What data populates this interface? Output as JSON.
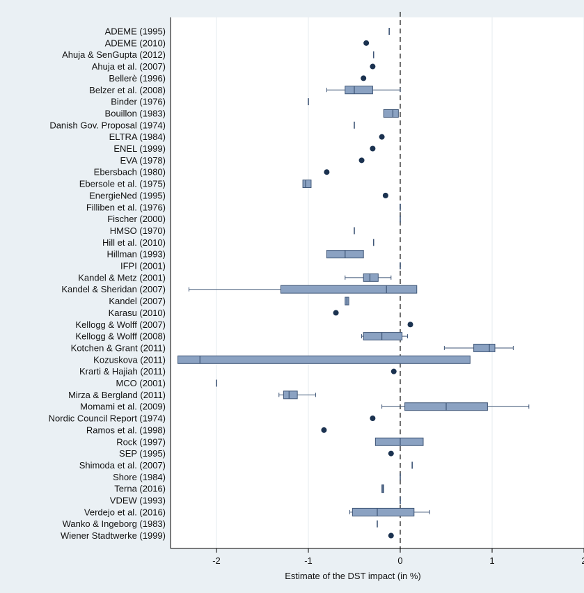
{
  "chart_data": {
    "type": "boxplot",
    "orientation": "horizontal",
    "xlabel": "Estimate of the DST impact (in %)",
    "xlim": [
      -2.5,
      2
    ],
    "xticks": [
      -2,
      -1,
      0,
      1,
      2
    ],
    "reference_line": 0,
    "grid": true,
    "colors": {
      "background": "#eaf0f4",
      "plot_background": "#ffffff",
      "grid": "#e6ebef",
      "box_fill": "#8ba2c2",
      "box_stroke": "#3f5677",
      "whisker": "#3f5677",
      "point": "#1b3250",
      "axis": "#000000",
      "text": "#111111",
      "reference_line": "#333333"
    },
    "studies": [
      {
        "label": "ADEME (1995)",
        "kind": "point_line",
        "v": -0.12
      },
      {
        "label": "ADEME (2010)",
        "kind": "dot",
        "v": -0.37
      },
      {
        "label": "Ahuja & SenGupta (2012)",
        "kind": "point_line",
        "v": -0.29
      },
      {
        "label": "Ahuja et al. (2007)",
        "kind": "dot",
        "v": -0.3
      },
      {
        "label": "Bellerè (1996)",
        "kind": "dot",
        "v": -0.4
      },
      {
        "label": "Belzer et al. (2008)",
        "kind": "box",
        "min": -0.8,
        "q1": -0.6,
        "median": -0.5,
        "q3": -0.3,
        "max": 0.0
      },
      {
        "label": "Binder (1976)",
        "kind": "point_line",
        "v": -1.0
      },
      {
        "label": "Bouillon (1983)",
        "kind": "box",
        "min": -0.18,
        "q1": -0.18,
        "median": -0.08,
        "q3": -0.02,
        "max": -0.02
      },
      {
        "label": "Danish Gov. Proposal (1974)",
        "kind": "point_line",
        "v": -0.5
      },
      {
        "label": "ELTRA (1984)",
        "kind": "dot",
        "v": -0.2
      },
      {
        "label": "ENEL (1999)",
        "kind": "dot",
        "v": -0.3
      },
      {
        "label": "EVA (1978)",
        "kind": "dot",
        "v": -0.42
      },
      {
        "label": "Ebersbach (1980)",
        "kind": "dot",
        "v": -0.8
      },
      {
        "label": "Ebersole et al. (1975)",
        "kind": "box",
        "min": -1.06,
        "q1": -1.06,
        "median": -1.03,
        "q3": -0.97,
        "max": -0.97
      },
      {
        "label": "EnergieNed (1995)",
        "kind": "dot",
        "v": -0.16
      },
      {
        "label": "Filliben et al. (1976)",
        "kind": "point_line",
        "v": 0.0
      },
      {
        "label": "Fischer (2000)",
        "kind": "point_line",
        "v": 0.0
      },
      {
        "label": "HMSO (1970)",
        "kind": "point_line",
        "v": -0.5
      },
      {
        "label": "Hill et al. (2010)",
        "kind": "point_line",
        "v": -0.29
      },
      {
        "label": "Hillman (1993)",
        "kind": "box",
        "min": -0.8,
        "q1": -0.8,
        "median": -0.6,
        "q3": -0.4,
        "max": -0.4
      },
      {
        "label": "IFPI (2001)",
        "kind": "point_line",
        "v": 0.0
      },
      {
        "label": "Kandel & Metz (2001)",
        "kind": "box",
        "min": -0.6,
        "q1": -0.4,
        "median": -0.33,
        "q3": -0.24,
        "max": -0.1
      },
      {
        "label": "Kandel & Sheridan (2007)",
        "kind": "box",
        "min": -2.3,
        "q1": -1.3,
        "median": -0.15,
        "q3": 0.18,
        "max": 0.18
      },
      {
        "label": "Kandel (2007)",
        "kind": "box",
        "min": -0.6,
        "q1": -0.6,
        "median": -0.58,
        "q3": -0.56,
        "max": -0.56
      },
      {
        "label": "Karasu (2010)",
        "kind": "dot",
        "v": -0.7
      },
      {
        "label": "Kellogg & Wolff (2007)",
        "kind": "dot",
        "v": 0.11
      },
      {
        "label": "Kellogg & Wolff (2008)",
        "kind": "box",
        "min": -0.42,
        "q1": -0.4,
        "median": -0.2,
        "q3": 0.02,
        "max": 0.08
      },
      {
        "label": "Kotchen & Grant (2011)",
        "kind": "box",
        "min": 0.48,
        "q1": 0.8,
        "median": 0.97,
        "q3": 1.03,
        "max": 1.23
      },
      {
        "label": "Kozuskova (2011)",
        "kind": "box",
        "min": -2.42,
        "q1": -2.42,
        "median": -2.18,
        "q3": 0.76,
        "max": 0.76
      },
      {
        "label": "Krarti & Hajiah (2011)",
        "kind": "dot",
        "v": -0.07
      },
      {
        "label": "MCO (2001)",
        "kind": "point_line",
        "v": -2.0
      },
      {
        "label": "Mirza & Bergland (2011)",
        "kind": "box",
        "min": -1.32,
        "q1": -1.27,
        "median": -1.21,
        "q3": -1.12,
        "max": -0.92
      },
      {
        "label": "Momami et al. (2009)",
        "kind": "box",
        "min": -0.2,
        "q1": 0.05,
        "median": 0.5,
        "q3": 0.95,
        "max": 1.4
      },
      {
        "label": "Nordic Council Report (1974)",
        "kind": "dot",
        "v": -0.3
      },
      {
        "label": "Ramos et al. (1998)",
        "kind": "dot",
        "v": -0.83
      },
      {
        "label": "Rock (1997)",
        "kind": "box",
        "min": -0.27,
        "q1": -0.27,
        "median": 0.0,
        "q3": 0.25,
        "max": 0.25
      },
      {
        "label": "SEP (1995)",
        "kind": "dot",
        "v": -0.1
      },
      {
        "label": "Shimoda et al. (2007)",
        "kind": "point_line",
        "v": 0.13
      },
      {
        "label": "Shore (1984)",
        "kind": "point_line",
        "v": 0.0
      },
      {
        "label": "Terna (2016)",
        "kind": "box",
        "min": -0.2,
        "q1": -0.2,
        "median": -0.19,
        "q3": -0.18,
        "max": -0.18
      },
      {
        "label": "VDEW (1993)",
        "kind": "point_line",
        "v": 0.0
      },
      {
        "label": "Verdejo et al. (2016)",
        "kind": "box",
        "min": -0.55,
        "q1": -0.52,
        "median": -0.25,
        "q3": 0.15,
        "max": 0.32
      },
      {
        "label": "Wanko & Ingeborg (1983)",
        "kind": "point_line",
        "v": -0.25
      },
      {
        "label": "Wiener Stadtwerke (1999)",
        "kind": "dot",
        "v": -0.1
      }
    ]
  }
}
